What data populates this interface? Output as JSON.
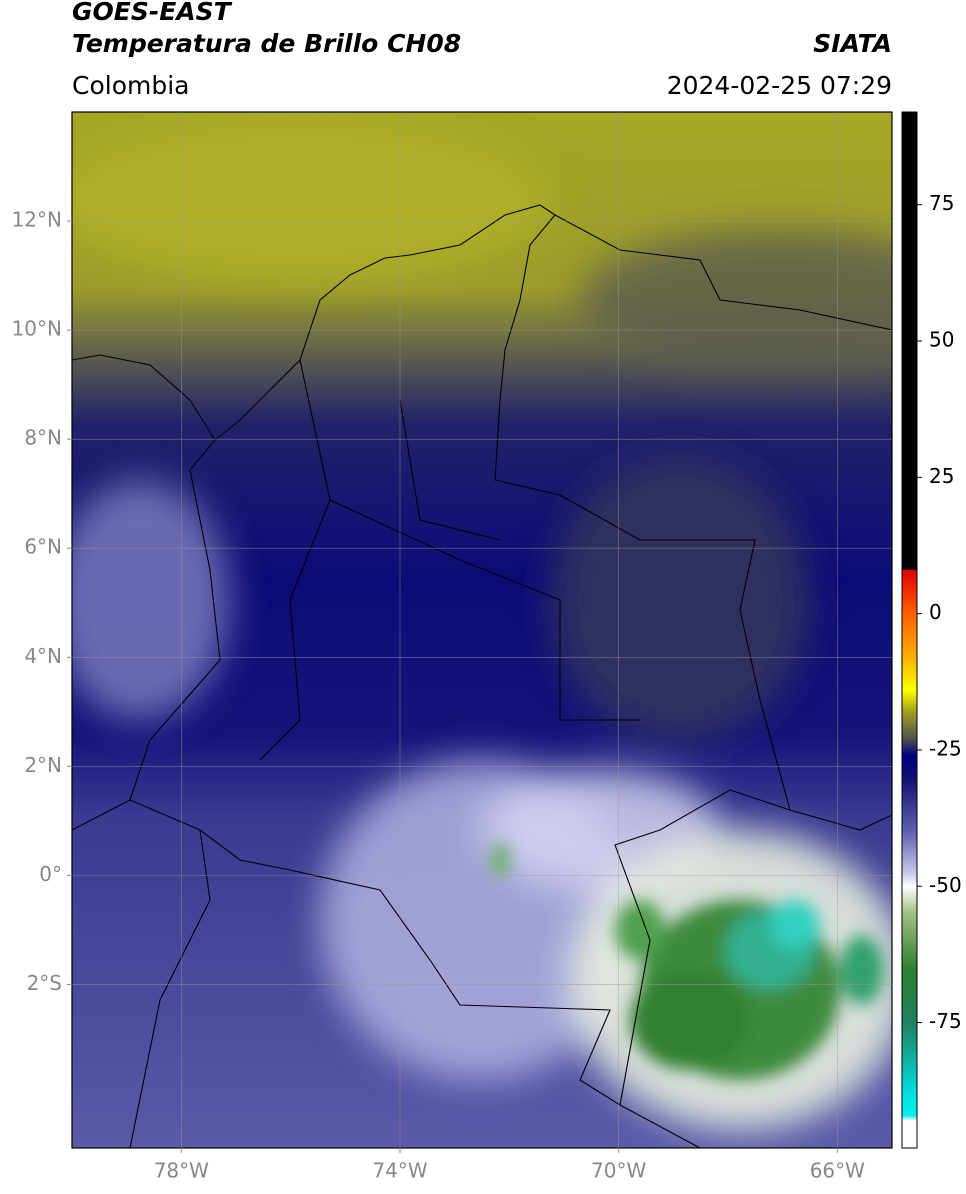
{
  "header": {
    "title_line1": "GOES-EAST",
    "title_line2": "Temperatura de Brillo CH08",
    "source": "SIATA",
    "region": "Colombia",
    "timestamp": "2024-02-25 07:29"
  },
  "map": {
    "xlim": [
      -80,
      -65
    ],
    "ylim": [
      -5,
      14
    ],
    "xticks": [
      {
        "value": -78,
        "label": "78°W"
      },
      {
        "value": -74,
        "label": "74°W"
      },
      {
        "value": -70,
        "label": "70°W"
      },
      {
        "value": -66,
        "label": "66°W"
      }
    ],
    "yticks": [
      {
        "value": 12,
        "label": "12°N"
      },
      {
        "value": 10,
        "label": "10°N"
      },
      {
        "value": 8,
        "label": "8°N"
      },
      {
        "value": 6,
        "label": "6°N"
      },
      {
        "value": 4,
        "label": "4°N"
      },
      {
        "value": 2,
        "label": "2°N"
      },
      {
        "value": 0,
        "label": "0°"
      },
      {
        "value": -2,
        "label": "2°S"
      }
    ],
    "grid": true
  },
  "colorbar": {
    "clim": [
      -98,
      92
    ],
    "ticks": [
      75,
      50,
      25,
      0,
      -25,
      -50,
      -75
    ],
    "colormap": [
      {
        "value": 92,
        "color": "#000000"
      },
      {
        "value": 8.1,
        "color": "#000000"
      },
      {
        "value": 8,
        "color": "#e00000"
      },
      {
        "value": 0,
        "color": "#ff6000"
      },
      {
        "value": -8,
        "color": "#ffb000"
      },
      {
        "value": -14,
        "color": "#ffff00"
      },
      {
        "value": -18,
        "color": "#a0a020"
      },
      {
        "value": -23,
        "color": "#505050"
      },
      {
        "value": -26,
        "color": "#000080"
      },
      {
        "value": -30,
        "color": "#101070"
      },
      {
        "value": -40,
        "color": "#6060b0"
      },
      {
        "value": -48,
        "color": "#d0d0f0"
      },
      {
        "value": -50,
        "color": "#ffffff"
      },
      {
        "value": -55,
        "color": "#a0c080"
      },
      {
        "value": -65,
        "color": "#308030"
      },
      {
        "value": -75,
        "color": "#208060"
      },
      {
        "value": -88,
        "color": "#00e0e0"
      },
      {
        "value": -92,
        "color": "#00f0f0"
      },
      {
        "value": -93,
        "color": "#ffffff"
      },
      {
        "value": -98,
        "color": "#ffffff"
      }
    ]
  }
}
